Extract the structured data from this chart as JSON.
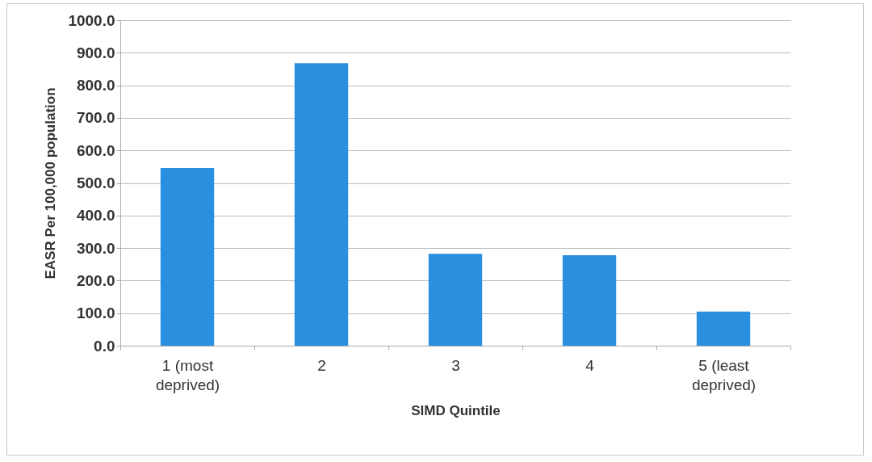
{
  "chart_data": {
    "type": "bar",
    "xlabel": "SIMD Quintile",
    "ylabel": "EASR Per 100,000 population",
    "categories": [
      "1 (most deprived)",
      "2",
      "3",
      "4",
      "5 (least deprived)"
    ],
    "values": [
      546,
      868,
      282,
      278,
      105
    ],
    "color": "#2b8fe0",
    "ylim": [
      0,
      1000
    ],
    "yticks": [
      {
        "value": 0,
        "label": "0.0"
      },
      {
        "value": 100,
        "label": "100.0"
      },
      {
        "value": 200,
        "label": "200.0"
      },
      {
        "value": 300,
        "label": "300.0"
      },
      {
        "value": 400,
        "label": "400.0"
      },
      {
        "value": 500,
        "label": "500.0"
      },
      {
        "value": 600,
        "label": "600.0"
      },
      {
        "value": 700,
        "label": "700.0"
      },
      {
        "value": 800,
        "label": "800.0"
      },
      {
        "value": 900,
        "label": "900.0"
      },
      {
        "value": 1000,
        "label": "1000.0"
      }
    ],
    "grid": "y"
  }
}
